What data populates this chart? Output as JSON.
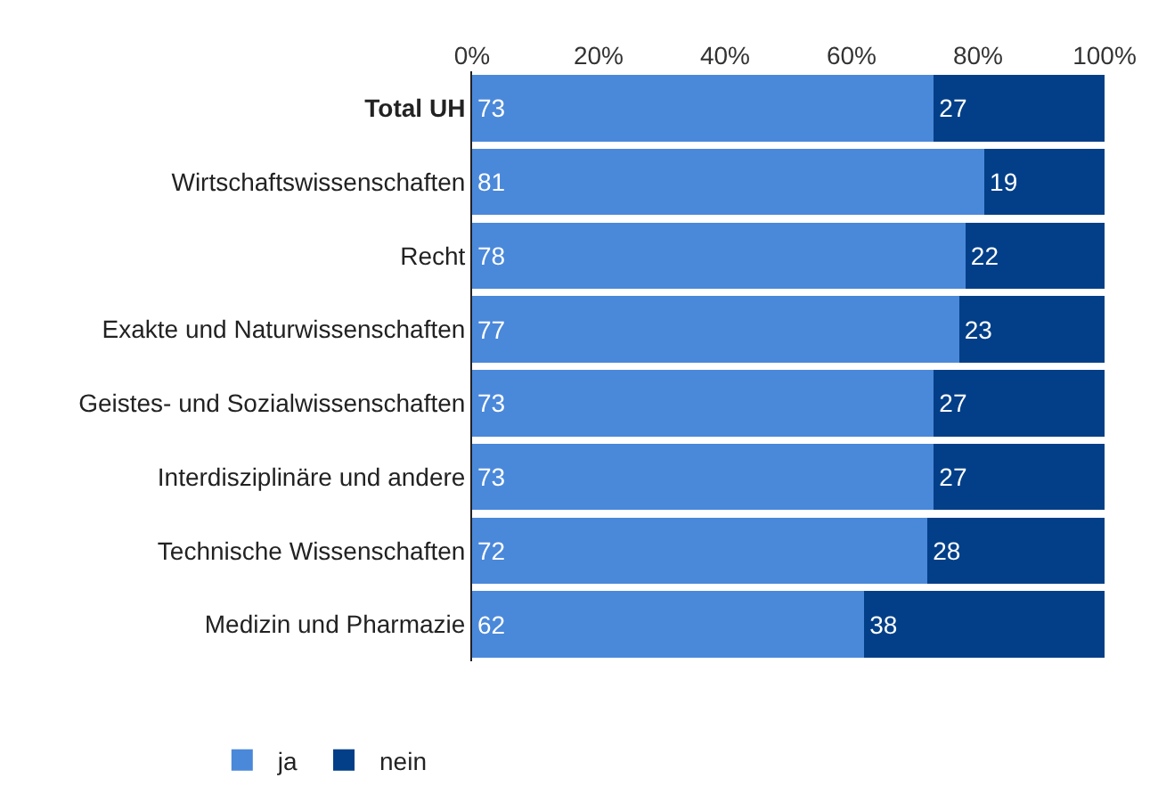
{
  "chart_data": {
    "type": "bar",
    "orientation": "horizontal",
    "stacked": true,
    "data_labels": true,
    "legend": "bottom left",
    "categories": [
      "Total UH",
      "Wirtschaftswissenschaften",
      "Recht",
      "Exakte und Naturwissenschaften",
      "Geistes- und Sozialwissenschaften",
      "Interdisziplinäre und andere",
      "Technische Wissenschaften",
      "Medizin und Pharmazie"
    ],
    "series": [
      {
        "name": "ja",
        "color": "#4a88da",
        "values": [
          73,
          81,
          78,
          77,
          73,
          73,
          72,
          62
        ]
      },
      {
        "name": "nein",
        "color": "#023f88",
        "values": [
          27,
          19,
          22,
          23,
          27,
          27,
          28,
          38
        ]
      }
    ],
    "xlim": [
      0,
      100
    ],
    "xticks": [
      {
        "value": 0,
        "label": "0%"
      },
      {
        "value": 20,
        "label": "20%"
      },
      {
        "value": 40,
        "label": "40%"
      },
      {
        "value": 60,
        "label": "60%"
      },
      {
        "value": 80,
        "label": "80%"
      },
      {
        "value": 100,
        "label": "100%"
      }
    ]
  }
}
